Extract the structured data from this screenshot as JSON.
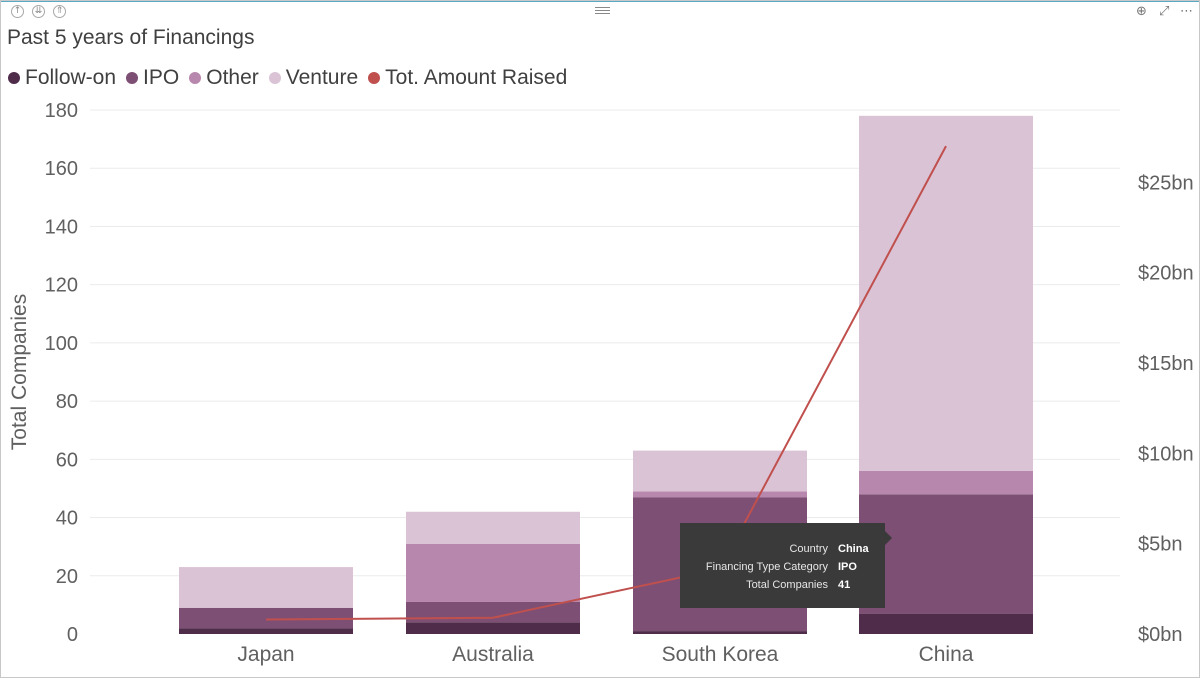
{
  "visual": {
    "title": "Past 5 years of Financings",
    "header_icons": [
      "drill-up-icon",
      "drill-down-all-icon",
      "expand-all-icon"
    ],
    "right_icons": [
      "drill-down-toggle-icon",
      "focus-mode-icon",
      "more-options-icon"
    ]
  },
  "legend": [
    {
      "label": "Follow-on",
      "color": "#4f2d4a"
    },
    {
      "label": "IPO",
      "color": "#7e4f74"
    },
    {
      "label": "Other",
      "color": "#b887ad"
    },
    {
      "label": "Venture",
      "color": "#dbc3d6"
    },
    {
      "label": "Tot. Amount Raised",
      "color": "#c0504d"
    }
  ],
  "tooltip": {
    "rows": [
      {
        "key": "Country",
        "value": "China"
      },
      {
        "key": "Financing Type Category",
        "value": "IPO"
      },
      {
        "key": "Total Companies",
        "value": "41"
      }
    ]
  },
  "chart_data": {
    "type": "bar",
    "stacked": true,
    "title": "Past 5 years of Financings",
    "categories": [
      "Japan",
      "Australia",
      "South Korea",
      "China"
    ],
    "xlabel": "",
    "ylabel": "Total Companies",
    "ylim": [
      0,
      180
    ],
    "yticks": [
      0,
      20,
      40,
      60,
      80,
      100,
      120,
      140,
      160,
      180
    ],
    "y2lim": [
      0,
      29
    ],
    "y2ticks": [
      0,
      5,
      10,
      15,
      20,
      25
    ],
    "y2tick_labels": [
      "$0bn",
      "$5bn",
      "$10bn",
      "$15bn",
      "$20bn",
      "$25bn"
    ],
    "grid": true,
    "legend_position": "top-left",
    "series": [
      {
        "name": "Follow-on",
        "axis": "left",
        "type": "bar",
        "color": "#4f2d4a",
        "values": [
          2,
          4,
          1,
          7
        ]
      },
      {
        "name": "IPO",
        "axis": "left",
        "type": "bar",
        "color": "#7e4f74",
        "values": [
          7,
          7,
          46,
          41
        ]
      },
      {
        "name": "Other",
        "axis": "left",
        "type": "bar",
        "color": "#b887ad",
        "values": [
          0,
          20,
          2,
          8
        ]
      },
      {
        "name": "Venture",
        "axis": "left",
        "type": "bar",
        "color": "#dbc3d6",
        "values": [
          14,
          11,
          14,
          122
        ]
      },
      {
        "name": "Tot. Amount Raised",
        "axis": "right",
        "type": "line",
        "color": "#c0504d",
        "values": [
          0.8,
          0.9,
          3.6,
          27
        ]
      }
    ]
  }
}
